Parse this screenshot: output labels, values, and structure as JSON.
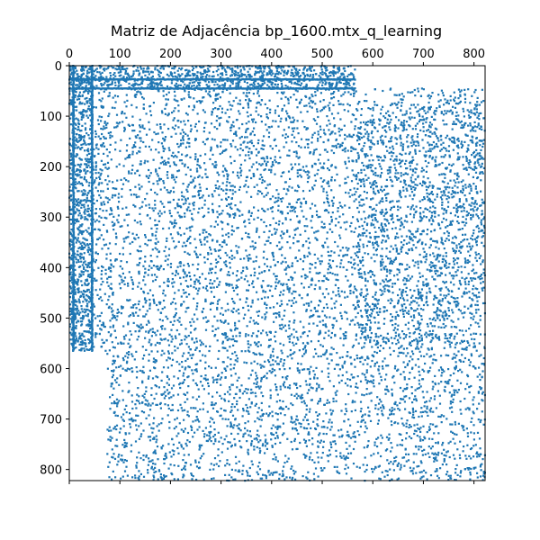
{
  "chart_data": {
    "type": "scatter",
    "subtype": "sparsity-pattern",
    "title": "Matriz de Adjacência bp_1600.mtx_q_learning",
    "xlabel": "",
    "ylabel": "",
    "xlim": [
      0,
      822
    ],
    "ylim": [
      822,
      0
    ],
    "x_axis_position": "top",
    "grid": false,
    "legend": "none",
    "marker_color": "#1f77b4",
    "x_ticks": [
      0,
      100,
      200,
      300,
      400,
      500,
      600,
      700,
      800
    ],
    "y_ticks": [
      0,
      100,
      200,
      300,
      400,
      500,
      600,
      700,
      800
    ],
    "x_tick_labels": [
      "0",
      "100",
      "200",
      "300",
      "400",
      "500",
      "600",
      "700",
      "800"
    ],
    "y_tick_labels": [
      "0",
      "100",
      "200",
      "300",
      "400",
      "500",
      "600",
      "700",
      "800"
    ],
    "dense_regions": [
      {
        "rows": [
          0,
          45
        ],
        "cols": [
          0,
          565
        ],
        "density": "medium"
      },
      {
        "rows": [
          0,
          565
        ],
        "cols": [
          0,
          45
        ],
        "density": "medium"
      },
      {
        "rows": [
          45,
          565
        ],
        "cols": [
          45,
          822
        ],
        "density": "medium"
      },
      {
        "rows": [
          565,
          822
        ],
        "cols": [
          75,
          822
        ],
        "density": "medium"
      },
      {
        "rows": [
          80,
          565
        ],
        "cols": [
          565,
          822
        ],
        "density": "medium"
      }
    ],
    "line_segments": [
      {
        "row": 45,
        "cols": [
          0,
          565
        ]
      },
      {
        "row": 27,
        "cols": [
          0,
          565
        ]
      },
      {
        "col": 45,
        "rows": [
          0,
          565
        ]
      },
      {
        "col": 8,
        "rows": [
          0,
          565
        ]
      }
    ]
  }
}
